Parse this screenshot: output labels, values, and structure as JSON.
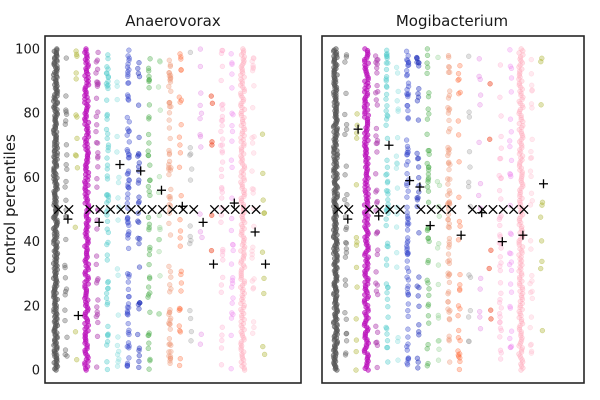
{
  "chart_data": {
    "type": "scatter",
    "subtype": "strip",
    "ylabel": "control percentiles",
    "ylim": [
      -4,
      104
    ],
    "yticks": [
      "0",
      "20",
      "40",
      "60",
      "80",
      "100"
    ],
    "ytick_values": [
      0,
      20,
      40,
      60,
      80,
      100
    ],
    "grid": false,
    "columns": [
      {
        "x": 0,
        "color": "#555555",
        "density": 260,
        "opacity": 0.55
      },
      {
        "x": 1,
        "color": "#555555",
        "density": 30,
        "opacity": 0.35
      },
      {
        "x": 2,
        "color": "#a8b028",
        "density": 14,
        "opacity": 0.35
      },
      {
        "x": 3,
        "color": "#bb10bb",
        "density": 180,
        "opacity": 0.6
      },
      {
        "x": 4,
        "color": "#b040b0",
        "density": 40,
        "opacity": 0.45
      },
      {
        "x": 5,
        "color": "#55cccc",
        "density": 60,
        "opacity": 0.4
      },
      {
        "x": 6,
        "color": "#88dddd",
        "density": 20,
        "opacity": 0.35
      },
      {
        "x": 7,
        "color": "#3344cc",
        "density": 80,
        "opacity": 0.35
      },
      {
        "x": 8,
        "color": "#2233bb",
        "density": 35,
        "opacity": 0.4
      },
      {
        "x": 9,
        "color": "#44aa44",
        "density": 45,
        "opacity": 0.35
      },
      {
        "x": 10,
        "color": "#88cc88",
        "density": 15,
        "opacity": 0.3
      },
      {
        "x": 11,
        "color": "#ee9977",
        "density": 70,
        "opacity": 0.35
      },
      {
        "x": 12,
        "color": "#ff6633",
        "density": 30,
        "opacity": 0.3
      },
      {
        "x": 13,
        "color": "#999999",
        "density": 14,
        "opacity": 0.3
      },
      {
        "x": 14,
        "color": "#dd66dd",
        "density": 14,
        "opacity": 0.25
      },
      {
        "x": 15,
        "color": "#ee4422",
        "density": 6,
        "opacity": 0.45
      },
      {
        "x": 16,
        "color": "#ffaacc",
        "density": 40,
        "opacity": 0.3
      },
      {
        "x": 17,
        "color": "#ee88ee",
        "density": 30,
        "opacity": 0.3
      },
      {
        "x": 18,
        "color": "#ffaabb",
        "density": 160,
        "opacity": 0.35
      },
      {
        "x": 19,
        "color": "#ffbbcc",
        "density": 30,
        "opacity": 0.3
      },
      {
        "x": 20,
        "color": "#a8b028",
        "density": 10,
        "opacity": 0.35
      }
    ],
    "x_marker_value": 50,
    "panels": [
      {
        "title": "Anaerovorax",
        "x_markers": [
          0,
          1,
          3,
          4,
          5,
          6,
          7,
          8,
          9,
          10,
          11,
          12,
          13,
          15,
          16,
          17,
          18,
          19
        ],
        "plus_markers": [
          {
            "x": 1,
            "y": 47
          },
          {
            "x": 2,
            "y": 17
          },
          {
            "x": 4,
            "y": 46
          },
          {
            "x": 6,
            "y": 64
          },
          {
            "x": 8,
            "y": 62
          },
          {
            "x": 10,
            "y": 56
          },
          {
            "x": 12,
            "y": 51
          },
          {
            "x": 14,
            "y": 46
          },
          {
            "x": 15,
            "y": 33
          },
          {
            "x": 17,
            "y": 52
          },
          {
            "x": 19,
            "y": 43
          },
          {
            "x": 20,
            "y": 33
          }
        ]
      },
      {
        "title": "Mogibacterium",
        "x_markers": [
          0,
          1,
          3,
          4,
          5,
          6,
          8,
          9,
          10,
          11,
          13,
          14,
          15,
          16,
          17,
          18
        ],
        "plus_markers": [
          {
            "x": 1,
            "y": 47
          },
          {
            "x": 2,
            "y": 75
          },
          {
            "x": 4,
            "y": 48
          },
          {
            "x": 5,
            "y": 70
          },
          {
            "x": 7,
            "y": 59
          },
          {
            "x": 8,
            "y": 57
          },
          {
            "x": 9,
            "y": 45
          },
          {
            "x": 12,
            "y": 42
          },
          {
            "x": 14,
            "y": 49
          },
          {
            "x": 16,
            "y": 40
          },
          {
            "x": 18,
            "y": 42
          },
          {
            "x": 20,
            "y": 58
          }
        ]
      }
    ]
  }
}
